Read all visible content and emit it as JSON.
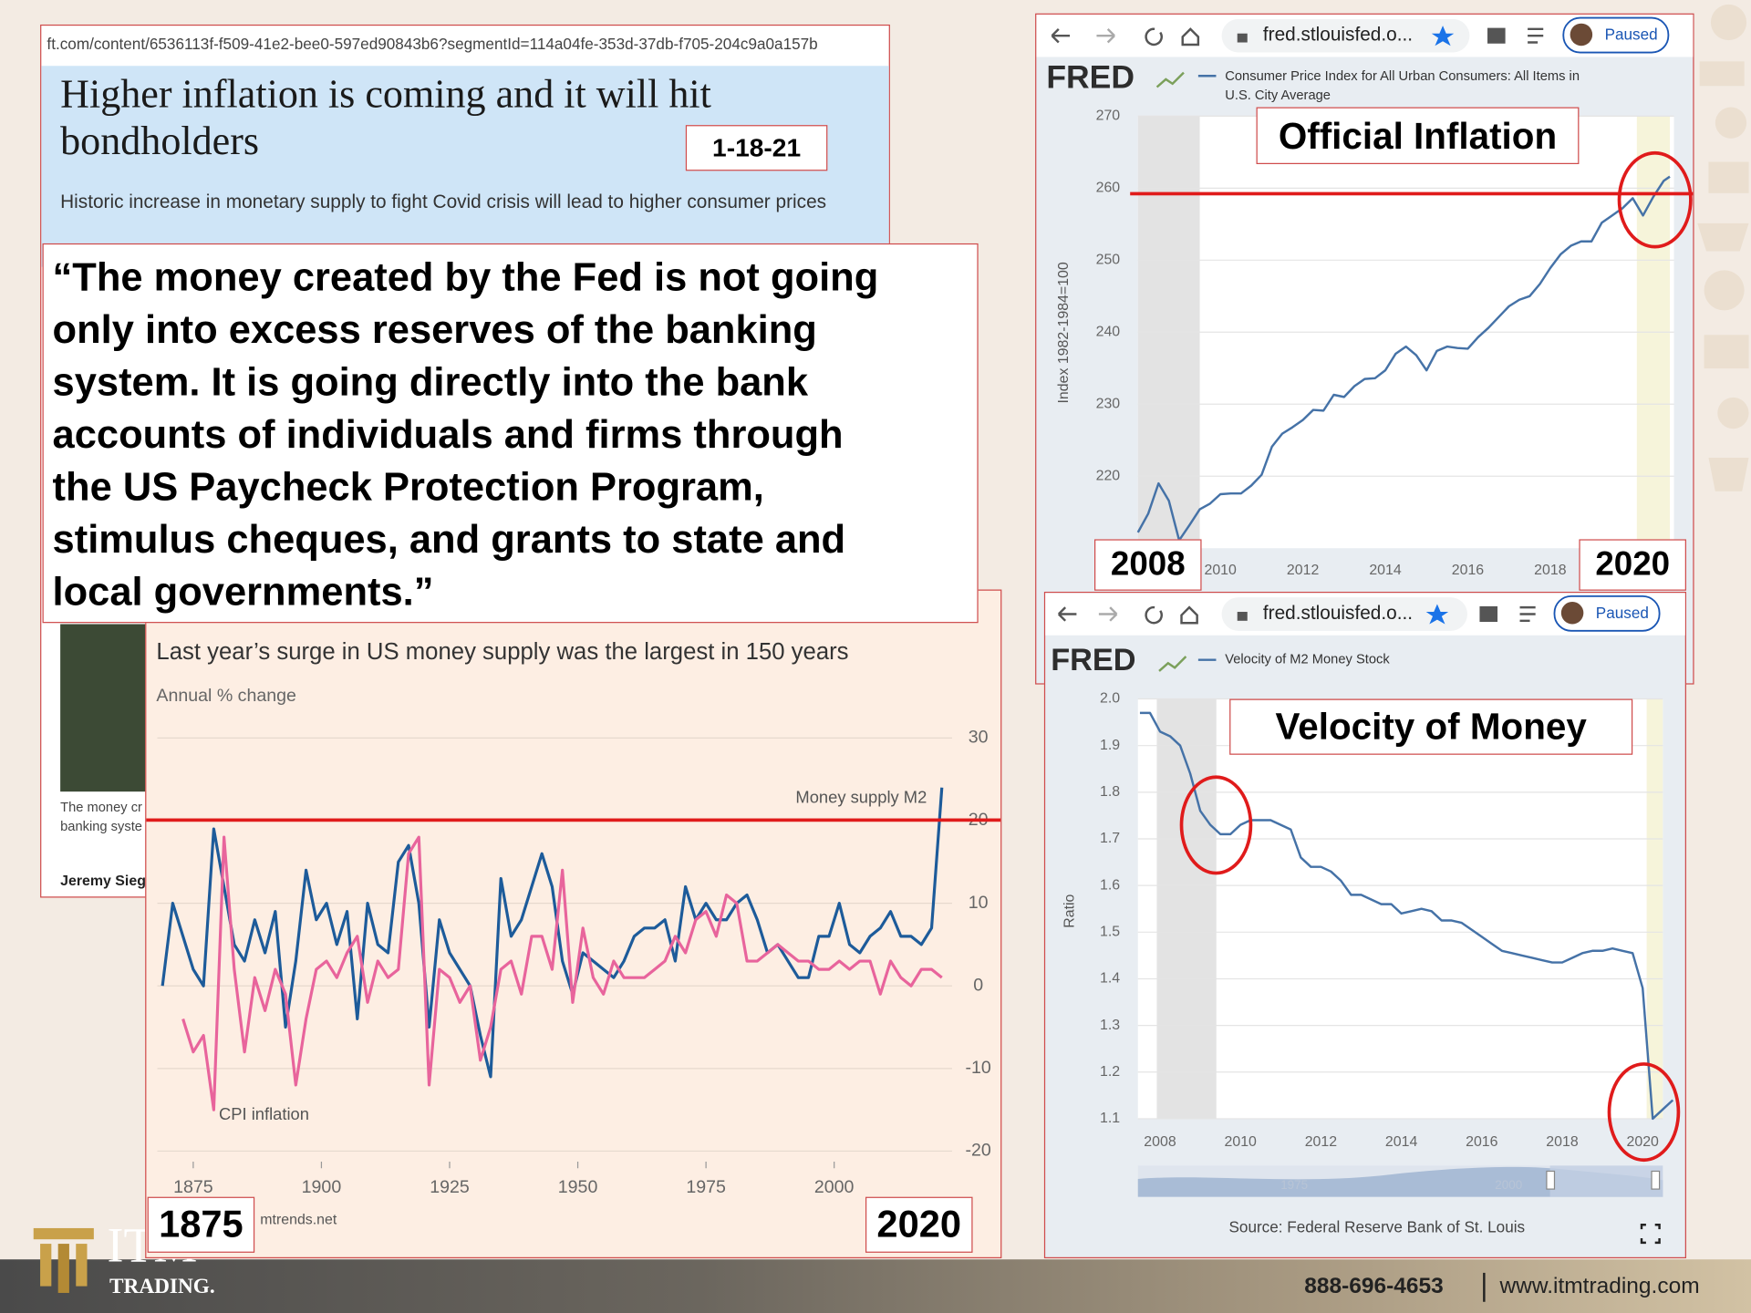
{
  "slide": {
    "ft_article": {
      "url": "ft.com/content/6536113f-f509-41e2-bee0-597ed90843b6?segmentId=114a04fe-353d-37db-f705-204c9a0a157b",
      "title": "Higher inflation is coming and it will hit bondholders",
      "date": "1-18-21",
      "standfirst": "Historic increase in monetary supply to fight Covid crisis will lead to higher consumer prices",
      "caption": [
        "The money cr",
        "banking syste"
      ],
      "author": "Jeremy Sieg"
    },
    "quote": [
      "“The money created by the Fed is not going",
      "only into excess reserves of the banking",
      "system. It is going directly into the bank",
      "accounts of individuals and firms through",
      "the US Paycheck Protection Program,",
      "stimulus cheques, and grants to state and",
      "local governments.”"
    ],
    "footer": {
      "logo": "ITM",
      "logo_sub": "TRADING.",
      "phone": "888-696-4653",
      "website": "www.itmtrading.com"
    }
  },
  "chart_data": [
    {
      "type": "line",
      "title": "Last year’s surge in US money supply was the largest in 150 years",
      "subtitle": "Annual % change",
      "source": "mtrends.net",
      "annotations": [
        "1875",
        "2020"
      ],
      "x": [
        1869,
        1871,
        1873,
        1875,
        1877,
        1879,
        1881,
        1883,
        1885,
        1887,
        1889,
        1891,
        1893,
        1895,
        1897,
        1899,
        1901,
        1903,
        1905,
        1907,
        1909,
        1911,
        1913,
        1915,
        1917,
        1919,
        1921,
        1923,
        1925,
        1927,
        1929,
        1931,
        1933,
        1935,
        1937,
        1939,
        1941,
        1943,
        1945,
        1947,
        1949,
        1951,
        1953,
        1955,
        1957,
        1959,
        1961,
        1963,
        1965,
        1967,
        1969,
        1971,
        1973,
        1975,
        1977,
        1979,
        1981,
        1983,
        1985,
        1987,
        1989,
        1991,
        1993,
        1995,
        1997,
        1999,
        2001,
        2003,
        2005,
        2007,
        2009,
        2011,
        2013,
        2015,
        2017,
        2019,
        2021
      ],
      "series": [
        {
          "name": "Money supply M2",
          "color": "#1d5b9a",
          "values": [
            0,
            10,
            6,
            2,
            0,
            19,
            12,
            5,
            3,
            8,
            4,
            9,
            -5,
            3,
            14,
            8,
            10,
            5,
            9,
            -4,
            10,
            5,
            4,
            15,
            17,
            10,
            -5,
            8,
            4,
            2,
            0,
            -6,
            -11,
            13,
            6,
            8,
            12,
            16,
            12,
            3,
            -1,
            4,
            3,
            2,
            1,
            3,
            6,
            7,
            7,
            8,
            3,
            12,
            8,
            10,
            8,
            8,
            10,
            11,
            8,
            4,
            5,
            3,
            1,
            1,
            6,
            6,
            10,
            5,
            4,
            6,
            7,
            9,
            6,
            6,
            5,
            7,
            24
          ]
        },
        {
          "name": "CPI inflation",
          "color": "#e8649c",
          "values": [
            null,
            null,
            -4,
            -8,
            -6,
            -15,
            18,
            2,
            -8,
            1,
            -3,
            2,
            -1,
            -12,
            -4,
            2,
            3,
            1,
            4,
            6,
            -2,
            3,
            1,
            2,
            16,
            18,
            -12,
            2,
            1,
            -2,
            0,
            -9,
            -5,
            2,
            3,
            -1,
            6,
            6,
            2,
            14,
            -2,
            7,
            1,
            -1,
            3,
            1,
            1,
            1,
            2,
            3,
            6,
            4,
            8,
            9,
            6,
            11,
            10,
            3,
            3,
            4,
            5,
            4,
            3,
            3,
            2,
            2,
            3,
            2,
            3,
            3,
            -1,
            3,
            1,
            0,
            2,
            2,
            1
          ]
        }
      ],
      "xlim": [
        1868,
        2023
      ],
      "ylim": [
        -21,
        32
      ],
      "xticks": [
        1875,
        1900,
        1925,
        1950,
        1975,
        2000
      ],
      "yticks": [
        -20,
        -10,
        0,
        10,
        20,
        30
      ],
      "grid": true
    },
    {
      "type": "line",
      "browser": {
        "url": "fred.stlouisfed.o...",
        "status": "Paused"
      },
      "site_logo": "FRED",
      "annotations": [
        "Official Inflation",
        "2008",
        "2020"
      ],
      "ylabel": "Index 1982-1984=100",
      "x": [
        2008,
        2008.25,
        2008.5,
        2008.75,
        2009,
        2009.25,
        2009.5,
        2009.75,
        2010,
        2010.25,
        2010.5,
        2010.75,
        2011,
        2011.25,
        2011.5,
        2011.75,
        2012,
        2012.25,
        2012.5,
        2012.75,
        2013,
        2013.25,
        2013.5,
        2013.75,
        2014,
        2014.25,
        2014.5,
        2014.75,
        2015,
        2015.25,
        2015.5,
        2015.75,
        2016,
        2016.25,
        2016.5,
        2016.75,
        2017,
        2017.25,
        2017.5,
        2017.75,
        2018,
        2018.25,
        2018.5,
        2018.75,
        2019,
        2019.25,
        2019.5,
        2019.75,
        2020,
        2020.25,
        2020.5,
        2020.75,
        2020.9
      ],
      "series": [
        {
          "name": "Consumer Price Index for All Urban Consumers: All Items in U.S. City Average",
          "color": "#4572a7",
          "values": [
            212.2,
            214.8,
            219.0,
            216.6,
            211.1,
            213.2,
            215.4,
            216.2,
            217.5,
            217.6,
            217.6,
            218.7,
            220.2,
            224.1,
            225.9,
            226.8,
            227.8,
            229.2,
            229.1,
            231.3,
            231.0,
            232.5,
            233.5,
            233.6,
            234.7,
            237.0,
            238.0,
            236.8,
            234.7,
            237.4,
            238.0,
            237.8,
            237.7,
            239.3,
            240.6,
            242.1,
            243.6,
            244.5,
            245.0,
            246.7,
            248.9,
            250.8,
            252.0,
            252.6,
            252.6,
            255.2,
            256.2,
            257.2,
            258.6,
            256.2,
            258.8,
            261.0,
            261.6
          ]
        }
      ],
      "bands": [
        {
          "x": [
            2008,
            2009.5
          ],
          "color": "#e3e3e3"
        },
        {
          "x": [
            2020.1,
            2020.9
          ],
          "color": "#f6f4da"
        }
      ],
      "xlim": [
        2008,
        2021
      ],
      "ylim": [
        210,
        270
      ],
      "xticks": [
        2010,
        2012,
        2014,
        2016,
        2018
      ],
      "yticks": [
        220,
        230,
        240,
        250,
        260,
        270
      ],
      "grid": true
    },
    {
      "type": "line",
      "browser": {
        "url": "fred.stlouisfed.o...",
        "status": "Paused"
      },
      "site_logo": "FRED",
      "annotations": [
        "Velocity of Money"
      ],
      "ylabel": "Ratio",
      "source": "Source: Federal Reserve Bank of St. Louis",
      "navigator_labels": [
        "1975",
        "2000"
      ],
      "x": [
        2007.5,
        2007.75,
        2008,
        2008.25,
        2008.5,
        2008.75,
        2009,
        2009.25,
        2009.5,
        2009.75,
        2010,
        2010.25,
        2010.5,
        2010.75,
        2011,
        2011.25,
        2011.5,
        2011.75,
        2012,
        2012.25,
        2012.5,
        2012.75,
        2013,
        2013.25,
        2013.5,
        2013.75,
        2014,
        2014.25,
        2014.5,
        2014.75,
        2015,
        2015.25,
        2015.5,
        2015.75,
        2016,
        2016.25,
        2016.5,
        2016.75,
        2017,
        2017.25,
        2017.5,
        2017.75,
        2018,
        2018.25,
        2018.5,
        2018.75,
        2019,
        2019.25,
        2019.5,
        2019.75,
        2020,
        2020.25,
        2020.5,
        2020.75
      ],
      "series": [
        {
          "name": "Velocity of M2 Money Stock",
          "color": "#4572a7",
          "values": [
            1.97,
            1.97,
            1.93,
            1.92,
            1.9,
            1.84,
            1.76,
            1.73,
            1.71,
            1.71,
            1.73,
            1.74,
            1.74,
            1.74,
            1.73,
            1.72,
            1.66,
            1.64,
            1.64,
            1.63,
            1.61,
            1.58,
            1.58,
            1.57,
            1.56,
            1.56,
            1.54,
            1.545,
            1.55,
            1.545,
            1.525,
            1.525,
            1.52,
            1.505,
            1.49,
            1.475,
            1.46,
            1.455,
            1.45,
            1.445,
            1.44,
            1.435,
            1.435,
            1.445,
            1.455,
            1.46,
            1.46,
            1.465,
            1.46,
            1.455,
            1.38,
            1.1,
            1.12,
            1.14
          ]
        }
      ],
      "bands": [
        {
          "x": [
            2007.92,
            2009.4
          ],
          "color": "#e3e3e3"
        },
        {
          "x": [
            2020.1,
            2020.5
          ],
          "color": "#f6f4da"
        }
      ],
      "xlim": [
        2007.45,
        2020.5
      ],
      "ylim": [
        1.1,
        2.0
      ],
      "xticks": [
        2008,
        2010,
        2012,
        2014,
        2016,
        2018,
        2020
      ],
      "yticks": [
        1.1,
        1.2,
        1.3,
        1.4,
        1.5,
        1.6,
        1.7,
        1.8,
        1.9,
        {
          "value": 2,
          "label": "2.0"
        }
      ],
      "grid": true
    }
  ]
}
